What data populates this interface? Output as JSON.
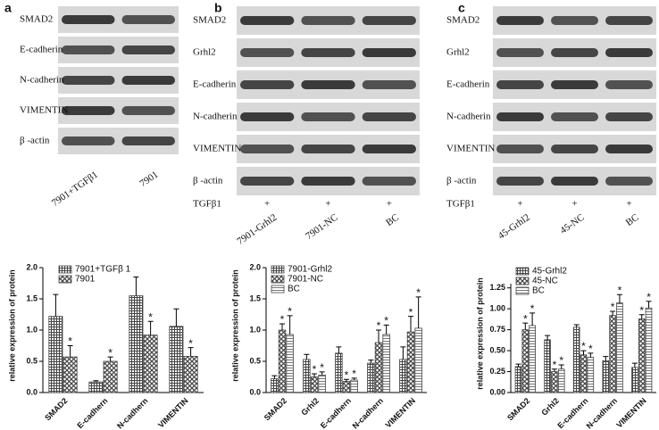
{
  "blots": [
    {
      "panel": "a",
      "rows": [
        "SMAD2",
        "E-cadherin",
        "N-cadherin",
        "VIMENTIN",
        "β -actin"
      ],
      "lanes": [
        "7901+TGFβ1",
        "7901"
      ]
    },
    {
      "panel": "b",
      "rows": [
        "SMAD2",
        "Grhl2",
        "E-cadherin",
        "N-cadherin",
        "VIMENTIN",
        "β -actin"
      ],
      "treatment": "TGFβ1",
      "marks": [
        "+",
        "+",
        "+"
      ],
      "lanes": [
        "7901-Grhl2",
        "7901-NC",
        "BC"
      ]
    },
    {
      "panel": "c",
      "rows": [
        "SMAD2",
        "Grhl2",
        "E-cadherin",
        "N-cadherin",
        "VIMENTIN",
        "β -actin"
      ],
      "treatment": "TGFβ1",
      "marks": [
        "+",
        "+",
        "+"
      ],
      "lanes": [
        "45-Grhl2",
        "45-NC",
        "BC"
      ]
    }
  ],
  "chart_data": [
    {
      "type": "bar",
      "ylabel": "relative expression of protein",
      "categories": [
        "SMAD2",
        "E-cadhern",
        "N-cadhern",
        "VIMENTIN"
      ],
      "series": [
        {
          "name": "7901+TGFβ 1",
          "color": "#444",
          "hatch": "grid",
          "values": [
            1.22,
            0.17,
            1.55,
            1.06
          ],
          "errors": [
            0.35,
            0.02,
            0.3,
            0.28
          ],
          "stars": [
            null,
            null,
            null,
            null
          ]
        },
        {
          "name": "7901",
          "color": "#444",
          "hatch": "cross",
          "values": [
            0.57,
            0.5,
            0.92,
            0.58
          ],
          "errors": [
            0.18,
            0.07,
            0.22,
            0.14
          ],
          "stars": [
            "*",
            "*",
            "*",
            "*"
          ]
        }
      ],
      "ylim": [
        0,
        2.0
      ],
      "yticks": [
        {
          "value": 0,
          "label": "0.0"
        },
        0.5,
        {
          "value": 1,
          "label": "1.0"
        },
        1.5,
        {
          "value": 2,
          "label": "2.0"
        }
      ],
      "legend": "top-left"
    },
    {
      "type": "bar",
      "ylabel": "relative expression of protein",
      "categories": [
        "SMAD2",
        "Grhl2",
        "E-cadhern",
        "N-cadhern",
        "VIMENTIN"
      ],
      "series": [
        {
          "name": "7901-Grhl2",
          "color": "#444",
          "hatch": "grid",
          "values": [
            0.22,
            0.53,
            0.63,
            0.47,
            0.53
          ],
          "errors": [
            0.05,
            0.08,
            0.1,
            0.05,
            0.2
          ],
          "stars": [
            null,
            null,
            null,
            null,
            null
          ]
        },
        {
          "name": "7901-NC",
          "color": "#444",
          "hatch": "cross",
          "values": [
            1.0,
            0.25,
            0.18,
            0.8,
            0.97
          ],
          "errors": [
            0.1,
            0.05,
            0.03,
            0.2,
            0.25
          ],
          "stars": [
            "*",
            "*",
            "*",
            "*",
            "*"
          ]
        },
        {
          "name": "BC",
          "color": "#444",
          "hatch": "lines",
          "values": [
            0.93,
            0.28,
            0.2,
            0.93,
            1.03
          ],
          "errors": [
            0.3,
            0.05,
            0.03,
            0.15,
            0.5
          ],
          "stars": [
            "*",
            "*",
            "*",
            "*",
            "*"
          ]
        }
      ],
      "ylim": [
        0,
        2.0
      ],
      "yticks": [
        {
          "value": 0,
          "label": "0.0"
        },
        0.5,
        {
          "value": 1,
          "label": "1.0"
        },
        1.5,
        {
          "value": 2,
          "label": "2.0"
        }
      ],
      "legend": "top-left"
    },
    {
      "type": "bar",
      "ylabel": "relative expression of protein",
      "categories": [
        "SMAD2",
        "Grhl2",
        "E-cadhern",
        "N-cadhern",
        "VIMENTIN"
      ],
      "series": [
        {
          "name": "45-Grhl2",
          "color": "#444",
          "hatch": "grid",
          "values": [
            0.31,
            0.63,
            0.78,
            0.38,
            0.3
          ],
          "errors": [
            0.03,
            0.05,
            0.03,
            0.05,
            0.05
          ],
          "stars": [
            null,
            null,
            null,
            null,
            null
          ]
        },
        {
          "name": "45-NC",
          "color": "#444",
          "hatch": "cross",
          "values": [
            0.75,
            0.25,
            0.45,
            0.92,
            0.88
          ],
          "errors": [
            0.08,
            0.03,
            0.05,
            0.05,
            0.05
          ],
          "stars": [
            "*",
            "*",
            "*",
            "*",
            "*"
          ]
        },
        {
          "name": "BC",
          "color": "#444",
          "hatch": "lines",
          "values": [
            0.8,
            0.28,
            0.42,
            1.07,
            1.01
          ],
          "errors": [
            0.15,
            0.05,
            0.05,
            0.1,
            0.08
          ],
          "stars": [
            "*",
            "*",
            "*",
            "*",
            "*"
          ]
        }
      ],
      "ylim": [
        0,
        1.3
      ],
      "yticks": [
        {
          "value": 0,
          "label": "0.00"
        },
        0.25,
        {
          "value": 0.5,
          "label": "0.50"
        },
        0.75,
        {
          "value": 1,
          "label": "1.00"
        },
        1.25
      ],
      "legend": "top-left"
    }
  ]
}
